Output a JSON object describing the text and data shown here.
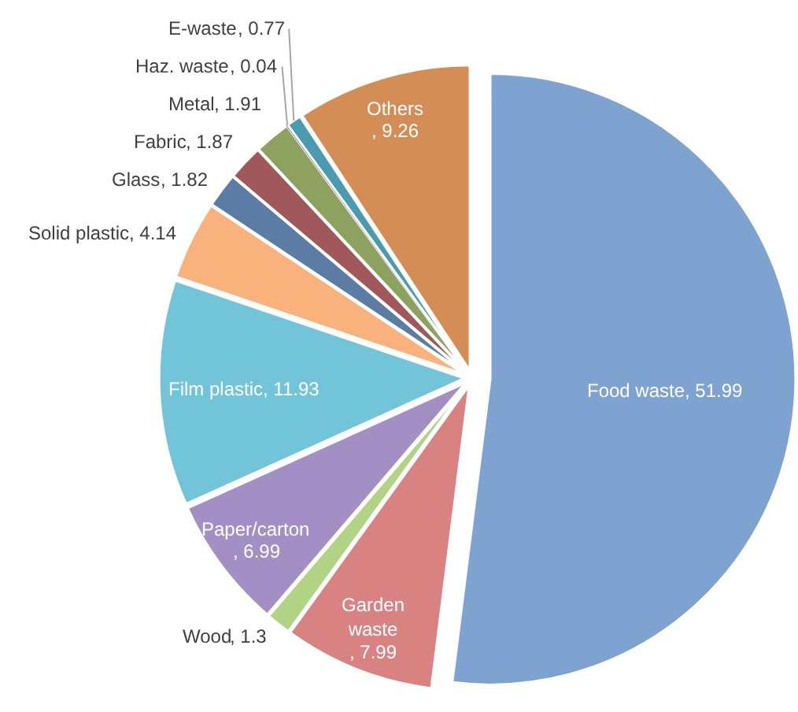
{
  "chart_data": {
    "type": "pie",
    "categories": [
      "Food waste",
      "Garden waste",
      "Wood",
      "Paper/carton",
      "Film plastic",
      "Solid plastic",
      "Glass",
      "Fabric",
      "Metal",
      "Haz. waste",
      "E-waste",
      "Others"
    ],
    "values": [
      51.99,
      7.99,
      1.3,
      6.99,
      11.93,
      4.14,
      1.82,
      1.87,
      1.91,
      0.04,
      0.77,
      9.26
    ],
    "value_labels": [
      ", 51.99",
      ", 7.99",
      ", 1.3",
      ", 6.99",
      ", 11.93",
      ", 4.14",
      ", 1.82",
      ", 1.87",
      ", 1.91",
      ", 0.04",
      ", 0.77",
      ", 9.26"
    ],
    "colors": [
      "#7ea3d0",
      "#d98282",
      "#b1d384",
      "#a38fc3",
      "#72c4d8",
      "#f9b27c",
      "#5a7ca5",
      "#a0585a",
      "#8ea260",
      "#6d5b8e",
      "#4a9ab0",
      "#d48d54"
    ],
    "legend": false
  }
}
